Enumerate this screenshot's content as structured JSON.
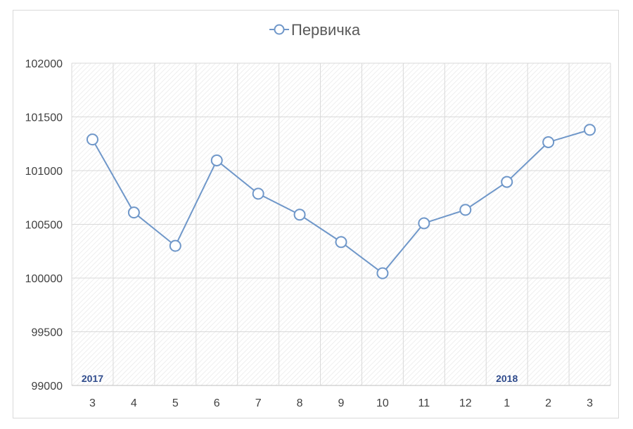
{
  "chart_data": {
    "type": "line",
    "legend": "Первичка",
    "categories": [
      "3",
      "4",
      "5",
      "6",
      "7",
      "8",
      "9",
      "10",
      "11",
      "12",
      "1",
      "2",
      "3"
    ],
    "series": [
      {
        "name": "Первичка",
        "values": [
          101290,
          100610,
          100300,
          101095,
          100785,
          100590,
          100335,
          100045,
          100510,
          100635,
          100895,
          101265,
          101380
        ],
        "color": "#6f97c9"
      }
    ],
    "year_labels": [
      {
        "text": "2017",
        "index": 0
      },
      {
        "text": "2018",
        "index": 10
      }
    ],
    "ylim": [
      99000,
      102000
    ],
    "yticks": [
      99000,
      99500,
      100000,
      100500,
      101000,
      101500,
      102000
    ],
    "grid": true,
    "legend_position": "top"
  }
}
